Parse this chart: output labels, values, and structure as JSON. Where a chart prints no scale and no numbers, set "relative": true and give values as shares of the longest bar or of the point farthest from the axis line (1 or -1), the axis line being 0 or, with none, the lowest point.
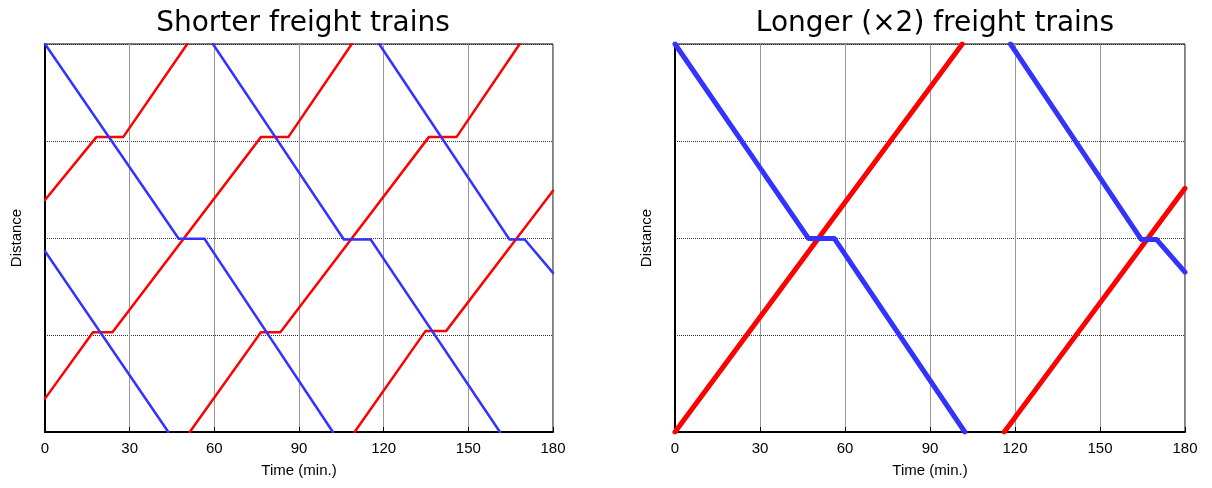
{
  "chart_data": [
    {
      "type": "line",
      "title": "Shorter freight trains",
      "xlabel": "Time (min.)",
      "ylabel": "Distance",
      "xlim": [
        0,
        180
      ],
      "xticks": [
        0,
        30,
        60,
        90,
        120,
        150,
        180
      ],
      "relative": true,
      "grid": true,
      "tick_labels": "x",
      "marker": "none",
      "line_style": "solid",
      "series": [
        {
          "color": "#ff0000",
          "x": [
            0,
            18.2,
            27.7,
            50.4
          ],
          "values": [
            0.598,
            0.76,
            0.76,
            1
          ]
        },
        {
          "color": "#ff0000",
          "x": [
            0,
            17.0,
            23.9,
            76.5,
            86.2,
            108.7
          ],
          "values": [
            0.086,
            0.257,
            0.257,
            0.76,
            0.76,
            1
          ]
        },
        {
          "color": "#ff0000",
          "x": [
            51.3,
            76.5,
            83.4,
            136.0,
            145.8,
            168.2
          ],
          "values": [
            0,
            0.257,
            0.257,
            0.76,
            0.76,
            1
          ]
        },
        {
          "color": "#ff0000",
          "x": [
            109.7,
            134.8,
            142.1,
            180
          ],
          "values": [
            0,
            0.26,
            0.26,
            0.622
          ]
        },
        {
          "color": "#3333ff",
          "x": [
            0,
            43.7
          ],
          "values": [
            0.466,
            0
          ]
        },
        {
          "color": "#3333ff",
          "x": [
            0,
            47.4,
            56.5,
            102.0
          ],
          "values": [
            1,
            0.498,
            0.498,
            0
          ]
        },
        {
          "color": "#3333ff",
          "x": [
            59.5,
            105.9,
            115.4,
            161.2
          ],
          "values": [
            1,
            0.496,
            0.496,
            0
          ]
        },
        {
          "color": "#3333ff",
          "x": [
            118.4,
            164.6,
            170.0,
            180
          ],
          "values": [
            1,
            0.496,
            0.496,
            0.41
          ]
        }
      ]
    },
    {
      "type": "line",
      "title": "Longer (×2) freight trains",
      "xlabel": "Time (min.)",
      "ylabel": "Distance",
      "xlim": [
        0,
        180
      ],
      "xticks": [
        0,
        30,
        60,
        90,
        120,
        150,
        180
      ],
      "relative": true,
      "grid": true,
      "tick_labels": "x",
      "marker": "none",
      "line_style": "solid",
      "series": [
        {
          "color": "#ff0000",
          "x": [
            0,
            101.4
          ],
          "values": [
            0,
            1
          ]
        },
        {
          "color": "#ff0000",
          "x": [
            116.2,
            180
          ],
          "values": [
            0,
            0.628
          ]
        },
        {
          "color": "#3333ff",
          "x": [
            0,
            47.1,
            56.2,
            102.3
          ],
          "values": [
            1,
            0.499,
            0.499,
            0
          ]
        },
        {
          "color": "#3333ff",
          "x": [
            118.4,
            164.6,
            170.0,
            180
          ],
          "values": [
            1,
            0.496,
            0.496,
            0.412
          ]
        }
      ]
    }
  ]
}
